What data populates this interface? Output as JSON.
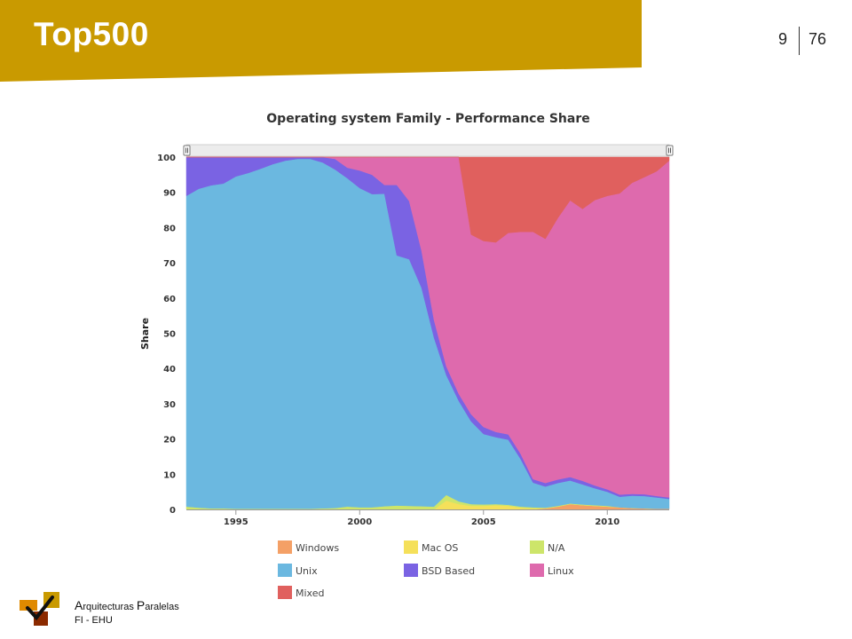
{
  "slide": {
    "title": "Top500",
    "page_current": "9",
    "page_total": "76",
    "header_color": "#c99a00"
  },
  "footer": {
    "line1_cap1": "A",
    "line1_rest1": "rquitecturas ",
    "line1_cap2": "P",
    "line1_rest2": "aralelas",
    "line2": "FI - EHU"
  },
  "chart_data": {
    "type": "area",
    "stacked": true,
    "title": "Operating system Family - Performance Share",
    "ylabel": "Share",
    "xlabel": "",
    "xlim": [
      1993,
      2012.5
    ],
    "ylim": [
      0,
      100
    ],
    "y_ticks": [
      0,
      10,
      20,
      30,
      40,
      50,
      60,
      70,
      80,
      90,
      100
    ],
    "x_ticks": [
      1995,
      2000,
      2005,
      2010
    ],
    "grid": false,
    "legend_position": "bottom",
    "x": [
      1993.0,
      1993.5,
      1994.0,
      1994.5,
      1995.0,
      1995.5,
      1996.0,
      1996.5,
      1997.0,
      1997.5,
      1998.0,
      1998.5,
      1999.0,
      1999.5,
      2000.0,
      2000.5,
      2001.0,
      2001.5,
      2002.0,
      2002.5,
      2003.0,
      2003.5,
      2004.0,
      2004.5,
      2005.0,
      2005.5,
      2006.0,
      2006.5,
      2007.0,
      2007.5,
      2008.0,
      2008.5,
      2009.0,
      2009.5,
      2010.0,
      2010.5,
      2011.0,
      2011.5,
      2012.0,
      2012.5
    ],
    "series": [
      {
        "name": "Windows",
        "color": "#f4a066",
        "values": [
          0,
          0,
          0,
          0,
          0,
          0,
          0,
          0,
          0,
          0,
          0,
          0,
          0,
          0,
          0,
          0,
          0,
          0,
          0,
          0,
          0,
          0,
          0,
          0,
          0,
          0,
          0,
          0,
          0,
          0.3,
          0.8,
          1.5,
          1.2,
          1.0,
          0.8,
          0.6,
          0.4,
          0.3,
          0.2,
          0.2
        ]
      },
      {
        "name": "Mac OS",
        "color": "#f5e05a",
        "values": [
          0,
          0,
          0,
          0,
          0,
          0,
          0,
          0,
          0,
          0,
          0,
          0,
          0,
          0,
          0,
          0,
          0,
          0,
          0,
          0,
          0,
          2.5,
          1.5,
          1.0,
          1.0,
          1.2,
          1.0,
          0.5,
          0.3,
          0,
          0,
          0,
          0,
          0,
          0,
          0,
          0,
          0,
          0,
          0
        ]
      },
      {
        "name": "N/A",
        "color": "#cde56a",
        "values": [
          0.8,
          0.5,
          0.3,
          0.3,
          0.2,
          0.2,
          0.2,
          0.2,
          0.2,
          0.2,
          0.2,
          0.3,
          0.4,
          0.8,
          0.6,
          0.6,
          0.9,
          1.1,
          1.0,
          0.9,
          0.8,
          1.6,
          0.8,
          0.5,
          0.4,
          0.3,
          0.3,
          0.3,
          0.3,
          0.2,
          0.2,
          0.2,
          0.2,
          0.2,
          0.2,
          0,
          0,
          0,
          0,
          0
        ]
      },
      {
        "name": "Unix",
        "color": "#6bb8e0",
        "values": [
          88.2,
          90.5,
          91.7,
          92.2,
          94.3,
          95.3,
          96.5,
          97.8,
          98.8,
          99.3,
          99.3,
          98.2,
          96.1,
          93.2,
          90.6,
          88.9,
          88.7,
          71.0,
          70.0,
          62.0,
          48.0,
          34.0,
          28.5,
          23.5,
          20.0,
          19.0,
          18.5,
          13.5,
          7.0,
          6.0,
          6.5,
          6.5,
          5.7,
          4.8,
          4.0,
          3.0,
          3.5,
          3.5,
          3.2,
          2.8
        ]
      },
      {
        "name": "BSD Based",
        "color": "#7a63e3",
        "values": [
          11.0,
          9.0,
          8.0,
          7.5,
          5.5,
          4.5,
          3.3,
          2.0,
          1.0,
          0.5,
          0.5,
          1.5,
          3.0,
          3.0,
          5.0,
          5.5,
          2.5,
          20.0,
          16.5,
          10.5,
          5.0,
          2.5,
          2.0,
          2.0,
          2.0,
          1.5,
          1.5,
          1.5,
          1.0,
          1.0,
          1.0,
          1.0,
          1.0,
          0.8,
          0.7,
          0.6,
          0.5,
          0.5,
          0.4,
          0.4
        ]
      },
      {
        "name": "Linux",
        "color": "#de6aad",
        "values": [
          0,
          0,
          0,
          0,
          0,
          0,
          0,
          0,
          0,
          0,
          0,
          0,
          0.5,
          3.0,
          3.8,
          5.0,
          7.9,
          7.9,
          12.5,
          26.6,
          46.2,
          59.4,
          67.2,
          51.0,
          52.8,
          53.8,
          57.2,
          63.0,
          70.2,
          69.3,
          74.2,
          78.5,
          77.2,
          81.0,
          83.3,
          85.5,
          88.3,
          90.0,
          92.2,
          95.6
        ]
      },
      {
        "name": "Mixed",
        "color": "#e0605e",
        "values": [
          0,
          0,
          0,
          0,
          0,
          0,
          0,
          0,
          0,
          0,
          0,
          0,
          0,
          0,
          0,
          0,
          0,
          0,
          0,
          0,
          0,
          0,
          0,
          22.0,
          23.8,
          24.2,
          21.5,
          21.2,
          21.2,
          23.2,
          17.3,
          12.3,
          14.7,
          12.2,
          11.0,
          10.3,
          7.3,
          5.7,
          4.0,
          1.0
        ]
      }
    ]
  }
}
